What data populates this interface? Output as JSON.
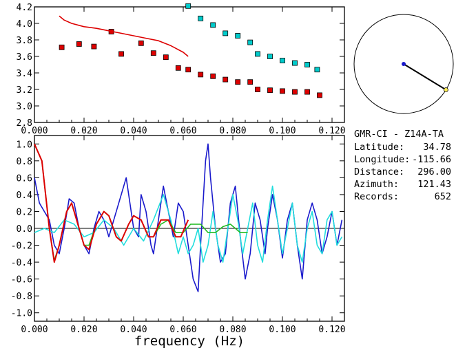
{
  "chart_data": [
    {
      "type": "scatter",
      "xlim": [
        0.0,
        0.125
      ],
      "ylim": [
        2.8,
        4.2
      ],
      "xticks": [
        "0.000",
        "0.020",
        "0.040",
        "0.060",
        "0.080",
        "0.100",
        "0.120"
      ],
      "yticks": [
        "2.8",
        "3.0",
        "3.2",
        "3.4",
        "3.6",
        "3.8",
        "4.0",
        "4.2"
      ],
      "series": [
        {
          "color": "#dd0000",
          "marker": "square",
          "points": [
            [
              0.011,
              3.71
            ],
            [
              0.018,
              3.75
            ],
            [
              0.024,
              3.72
            ],
            [
              0.031,
              3.9
            ],
            [
              0.035,
              3.63
            ],
            [
              0.043,
              3.76
            ],
            [
              0.048,
              3.64
            ],
            [
              0.053,
              3.59
            ],
            [
              0.058,
              3.46
            ],
            [
              0.062,
              3.44
            ],
            [
              0.067,
              3.38
            ],
            [
              0.072,
              3.36
            ],
            [
              0.077,
              3.32
            ],
            [
              0.082,
              3.29
            ],
            [
              0.087,
              3.29
            ],
            [
              0.09,
              3.2
            ],
            [
              0.095,
              3.19
            ],
            [
              0.1,
              3.18
            ],
            [
              0.105,
              3.17
            ],
            [
              0.11,
              3.17
            ],
            [
              0.115,
              3.13
            ]
          ]
        },
        {
          "color": "#00cccc",
          "marker": "square",
          "points": [
            [
              0.062,
              4.21
            ],
            [
              0.067,
              4.06
            ],
            [
              0.072,
              3.98
            ],
            [
              0.077,
              3.88
            ],
            [
              0.082,
              3.85
            ],
            [
              0.087,
              3.77
            ],
            [
              0.09,
              3.63
            ],
            [
              0.095,
              3.6
            ],
            [
              0.1,
              3.55
            ],
            [
              0.105,
              3.52
            ],
            [
              0.11,
              3.5
            ],
            [
              0.114,
              3.44
            ]
          ]
        },
        {
          "color": "#dd0000",
          "marker": "line",
          "points": [
            [
              0.01,
              4.09
            ],
            [
              0.012,
              4.04
            ],
            [
              0.015,
              4.0
            ],
            [
              0.02,
              3.96
            ],
            [
              0.025,
              3.94
            ],
            [
              0.03,
              3.91
            ],
            [
              0.035,
              3.88
            ],
            [
              0.04,
              3.85
            ],
            [
              0.045,
              3.82
            ],
            [
              0.05,
              3.79
            ],
            [
              0.055,
              3.73
            ],
            [
              0.06,
              3.65
            ],
            [
              0.062,
              3.6
            ]
          ]
        }
      ]
    },
    {
      "type": "line",
      "xlim": [
        0.0,
        0.125
      ],
      "ylim": [
        -1.1,
        1.1
      ],
      "xlabel": "frequency (Hz)",
      "xticks": [
        "0.000",
        "0.020",
        "0.040",
        "0.060",
        "0.080",
        "0.100",
        "0.120"
      ],
      "yticks": [
        "1.0",
        "0.8",
        "0.6",
        "0.4",
        "0.2",
        "0.0",
        "-0.2",
        "-0.4",
        "-0.6",
        "-0.8",
        "-1.0"
      ],
      "series": [
        {
          "color": "#1a1acc",
          "points": [
            [
              0.0,
              0.6
            ],
            [
              0.002,
              0.3
            ],
            [
              0.004,
              0.2
            ],
            [
              0.006,
              0.1
            ],
            [
              0.008,
              -0.2
            ],
            [
              0.01,
              -0.3
            ],
            [
              0.012,
              0.0
            ],
            [
              0.014,
              0.35
            ],
            [
              0.016,
              0.3
            ],
            [
              0.018,
              0.0
            ],
            [
              0.02,
              -0.2
            ],
            [
              0.022,
              -0.3
            ],
            [
              0.024,
              0.0
            ],
            [
              0.026,
              0.2
            ],
            [
              0.028,
              0.1
            ],
            [
              0.03,
              -0.1
            ],
            [
              0.032,
              0.1
            ],
            [
              0.034,
              0.3
            ],
            [
              0.036,
              0.5
            ],
            [
              0.037,
              0.6
            ],
            [
              0.038,
              0.4
            ],
            [
              0.04,
              0.0
            ],
            [
              0.042,
              -0.1
            ],
            [
              0.043,
              0.4
            ],
            [
              0.045,
              0.2
            ],
            [
              0.047,
              -0.2
            ],
            [
              0.048,
              -0.3
            ],
            [
              0.05,
              0.1
            ],
            [
              0.052,
              0.5
            ],
            [
              0.054,
              0.2
            ],
            [
              0.056,
              -0.1
            ],
            [
              0.058,
              0.3
            ],
            [
              0.06,
              0.2
            ],
            [
              0.062,
              -0.2
            ],
            [
              0.064,
              -0.6
            ],
            [
              0.066,
              -0.75
            ],
            [
              0.067,
              -0.2
            ],
            [
              0.069,
              0.8
            ],
            [
              0.07,
              1.0
            ],
            [
              0.071,
              0.6
            ],
            [
              0.073,
              0.0
            ],
            [
              0.075,
              -0.4
            ],
            [
              0.077,
              -0.3
            ],
            [
              0.079,
              0.3
            ],
            [
              0.081,
              0.5
            ],
            [
              0.083,
              -0.1
            ],
            [
              0.085,
              -0.6
            ],
            [
              0.087,
              -0.3
            ],
            [
              0.089,
              0.3
            ],
            [
              0.091,
              0.1
            ],
            [
              0.093,
              -0.3
            ],
            [
              0.094,
              0.0
            ],
            [
              0.096,
              0.4
            ],
            [
              0.098,
              0.1
            ],
            [
              0.1,
              -0.35
            ],
            [
              0.102,
              0.1
            ],
            [
              0.104,
              0.3
            ],
            [
              0.106,
              -0.2
            ],
            [
              0.108,
              -0.6
            ],
            [
              0.11,
              0.1
            ],
            [
              0.112,
              0.3
            ],
            [
              0.114,
              0.1
            ],
            [
              0.116,
              -0.3
            ],
            [
              0.118,
              -0.1
            ],
            [
              0.12,
              0.2
            ],
            [
              0.122,
              -0.2
            ],
            [
              0.124,
              0.1
            ]
          ]
        },
        {
          "color": "#22dddd",
          "points": [
            [
              0.0,
              -0.05
            ],
            [
              0.004,
              0.0
            ],
            [
              0.008,
              -0.05
            ],
            [
              0.012,
              0.1
            ],
            [
              0.016,
              0.05
            ],
            [
              0.02,
              -0.1
            ],
            [
              0.024,
              -0.05
            ],
            [
              0.028,
              0.1
            ],
            [
              0.032,
              0.0
            ],
            [
              0.036,
              -0.2
            ],
            [
              0.04,
              0.0
            ],
            [
              0.044,
              -0.15
            ],
            [
              0.048,
              0.1
            ],
            [
              0.052,
              0.4
            ],
            [
              0.055,
              0.1
            ],
            [
              0.058,
              -0.3
            ],
            [
              0.06,
              -0.1
            ],
            [
              0.062,
              -0.3
            ],
            [
              0.064,
              -0.2
            ],
            [
              0.066,
              0.0
            ],
            [
              0.068,
              -0.4
            ],
            [
              0.07,
              -0.2
            ],
            [
              0.072,
              0.2
            ],
            [
              0.074,
              -0.2
            ],
            [
              0.076,
              -0.4
            ],
            [
              0.078,
              0.0
            ],
            [
              0.08,
              0.4
            ],
            [
              0.082,
              0.1
            ],
            [
              0.084,
              -0.3
            ],
            [
              0.086,
              0.0
            ],
            [
              0.088,
              0.3
            ],
            [
              0.09,
              -0.2
            ],
            [
              0.092,
              -0.4
            ],
            [
              0.094,
              0.1
            ],
            [
              0.096,
              0.5
            ],
            [
              0.098,
              0.1
            ],
            [
              0.1,
              -0.3
            ],
            [
              0.102,
              0.0
            ],
            [
              0.104,
              0.3
            ],
            [
              0.106,
              -0.2
            ],
            [
              0.108,
              -0.4
            ],
            [
              0.11,
              0.0
            ],
            [
              0.112,
              0.2
            ],
            [
              0.114,
              -0.2
            ],
            [
              0.116,
              -0.3
            ],
            [
              0.118,
              0.1
            ],
            [
              0.12,
              0.2
            ],
            [
              0.122,
              -0.2
            ],
            [
              0.124,
              -0.1
            ]
          ]
        },
        {
          "color": "#22bb22",
          "points": [
            [
              0.0,
              1.0
            ],
            [
              0.003,
              0.8
            ],
            [
              0.006,
              0.0
            ],
            [
              0.008,
              -0.38
            ],
            [
              0.01,
              -0.2
            ],
            [
              0.013,
              0.2
            ],
            [
              0.015,
              0.3
            ],
            [
              0.017,
              0.1
            ],
            [
              0.02,
              -0.2
            ],
            [
              0.022,
              -0.2
            ],
            [
              0.025,
              0.05
            ],
            [
              0.028,
              0.2
            ],
            [
              0.03,
              0.15
            ],
            [
              0.033,
              -0.1
            ],
            [
              0.035,
              -0.15
            ],
            [
              0.038,
              0.05
            ],
            [
              0.04,
              0.15
            ],
            [
              0.043,
              0.1
            ],
            [
              0.046,
              -0.1
            ],
            [
              0.048,
              -0.1
            ],
            [
              0.051,
              0.05
            ],
            [
              0.054,
              0.1
            ],
            [
              0.057,
              -0.05
            ],
            [
              0.06,
              -0.05
            ],
            [
              0.063,
              0.05
            ],
            [
              0.067,
              0.05
            ],
            [
              0.07,
              -0.05
            ],
            [
              0.073,
              -0.05
            ],
            [
              0.076,
              0.02
            ],
            [
              0.079,
              0.05
            ],
            [
              0.083,
              -0.05
            ],
            [
              0.086,
              -0.05
            ]
          ]
        },
        {
          "color": "#dd0000",
          "points": [
            [
              0.0,
              1.0
            ],
            [
              0.003,
              0.8
            ],
            [
              0.006,
              0.0
            ],
            [
              0.008,
              -0.4
            ],
            [
              0.01,
              -0.2
            ],
            [
              0.013,
              0.2
            ],
            [
              0.015,
              0.3
            ],
            [
              0.017,
              0.1
            ],
            [
              0.02,
              -0.2
            ],
            [
              0.022,
              -0.25
            ],
            [
              0.025,
              0.05
            ],
            [
              0.028,
              0.2
            ],
            [
              0.03,
              0.15
            ],
            [
              0.033,
              -0.1
            ],
            [
              0.035,
              -0.15
            ],
            [
              0.038,
              0.05
            ],
            [
              0.04,
              0.15
            ],
            [
              0.043,
              0.1
            ],
            [
              0.046,
              -0.1
            ],
            [
              0.048,
              -0.1
            ],
            [
              0.051,
              0.1
            ],
            [
              0.054,
              0.1
            ],
            [
              0.057,
              -0.1
            ],
            [
              0.059,
              -0.1
            ],
            [
              0.062,
              0.1
            ]
          ]
        }
      ]
    }
  ],
  "info": {
    "station": "GMR-CI - Z14A-TA",
    "rows": [
      {
        "label": "Latitude:",
        "value": "34.78"
      },
      {
        "label": "Longitude:",
        "value": "-115.66"
      },
      {
        "label": "Distance:",
        "value": "296.00"
      },
      {
        "label": "Azimuth:",
        "value": "121.43"
      },
      {
        "label": "Records:",
        "value": "652"
      }
    ]
  },
  "azimuth_diagram": {
    "azimuth_deg": 121.43,
    "line_color": "#000000",
    "center_color": "#1a1acc",
    "endpoint_color": "#ffee55"
  }
}
